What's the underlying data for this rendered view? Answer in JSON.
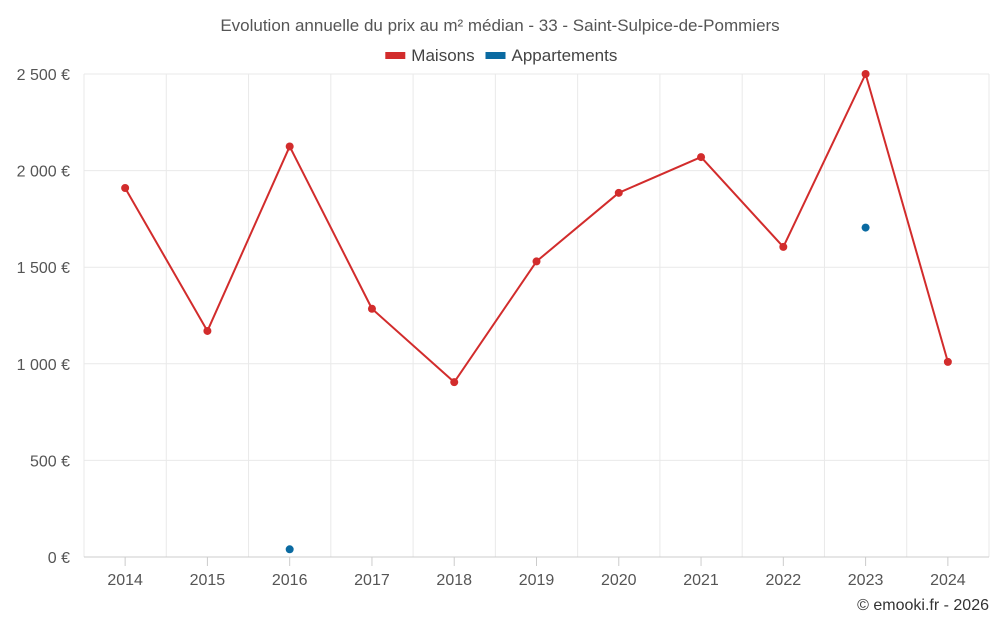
{
  "chart_data": {
    "type": "line",
    "title": "Evolution annuelle du prix au m² médian - 33 - Saint-Sulpice-de-Pommiers",
    "x": [
      "2014",
      "2015",
      "2016",
      "2017",
      "2018",
      "2019",
      "2020",
      "2021",
      "2022",
      "2023",
      "2024"
    ],
    "series": [
      {
        "name": "Maisons",
        "color": "#d22c2c",
        "style": "line-with-markers",
        "values": [
          1910,
          1170,
          2125,
          1285,
          905,
          1530,
          1885,
          2070,
          1605,
          2500,
          1010
        ]
      },
      {
        "name": "Appartements",
        "color": "#0a6aa1",
        "style": "markers-only",
        "values": [
          null,
          null,
          40,
          null,
          null,
          null,
          null,
          null,
          null,
          1705,
          null
        ]
      }
    ],
    "ylim": [
      0,
      2500
    ],
    "yticks": [
      0,
      500,
      1000,
      1500,
      2000,
      2500
    ],
    "ytick_labels": [
      "0 €",
      "500 €",
      "1 000 €",
      "1 500 €",
      "2 000 €",
      "2 500 €"
    ],
    "grid": true,
    "legend_position": "top-center",
    "credit": "© emooki.fr - 2026"
  }
}
